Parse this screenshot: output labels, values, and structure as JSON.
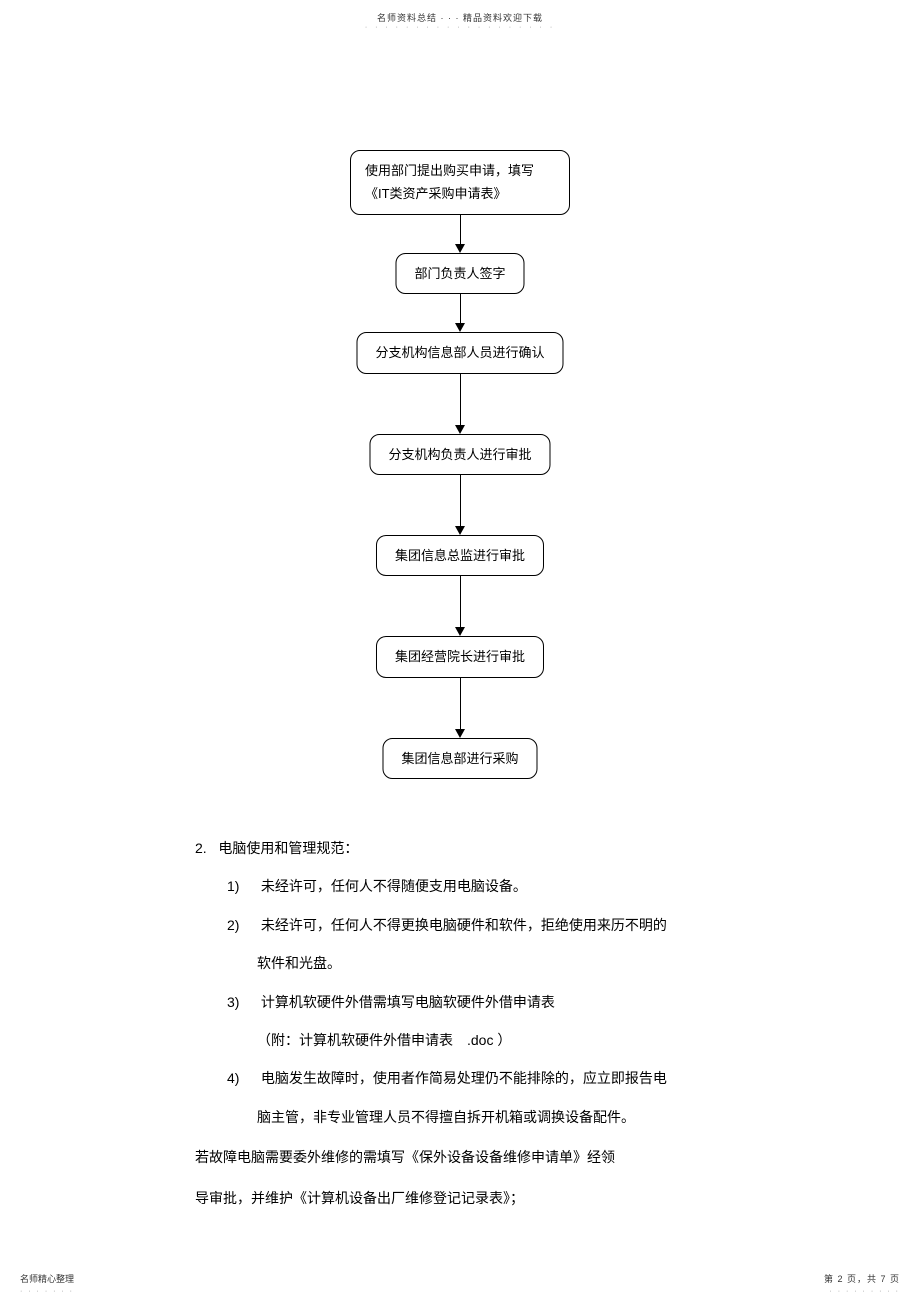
{
  "header": {
    "text": "名师资料总结 · · · 精品资料欢迎下载",
    "dots": "· · · · · · · · · · · · · · · · · · ·"
  },
  "flowchart": {
    "nodes": [
      "使用部门提出购买申请，填写《IT类资产采购申请表》",
      "部门负责人签字",
      "分支机构信息部人员进行确认",
      "分支机构负责人进行审批",
      "集团信息总监进行审批",
      "集团经营院长进行审批",
      "集团信息部进行采购"
    ]
  },
  "content": {
    "section_num": "2.",
    "section_title": "电脑使用和管理规范：",
    "items": [
      {
        "num": "1)",
        "text": "未经许可，任何人不得随便支用电脑设备。"
      },
      {
        "num": "2)",
        "text": "未经许可，任何人不得更换电脑硬件和软件，拒绝使用来历不明的",
        "cont": "软件和光盘。"
      },
      {
        "num": "3)",
        "text": "计算机软硬件外借需填写电脑软硬件外借申请表",
        "cont": "（附：计算机软硬件外借申请表　.doc ）"
      },
      {
        "num": "4)",
        "text": "电脑发生故障时，使用者作简易处理仍不能排除的，应立即报告电",
        "cont": "脑主管，非专业管理人员不得擅自拆开机箱或调换设备配件。"
      }
    ],
    "paragraph1": "若故障电脑需要委外维修的需填写《保外设备设备维修申请单》经领",
    "paragraph2": "导审批，并维护《计算机设备出厂维修登记记录表》；"
  },
  "footer": {
    "left": "名师精心整理",
    "left_dots": "· · · · · · ·",
    "right": "第 2 页，共 7 页",
    "right_dots": "· · · · · · · · ·"
  }
}
